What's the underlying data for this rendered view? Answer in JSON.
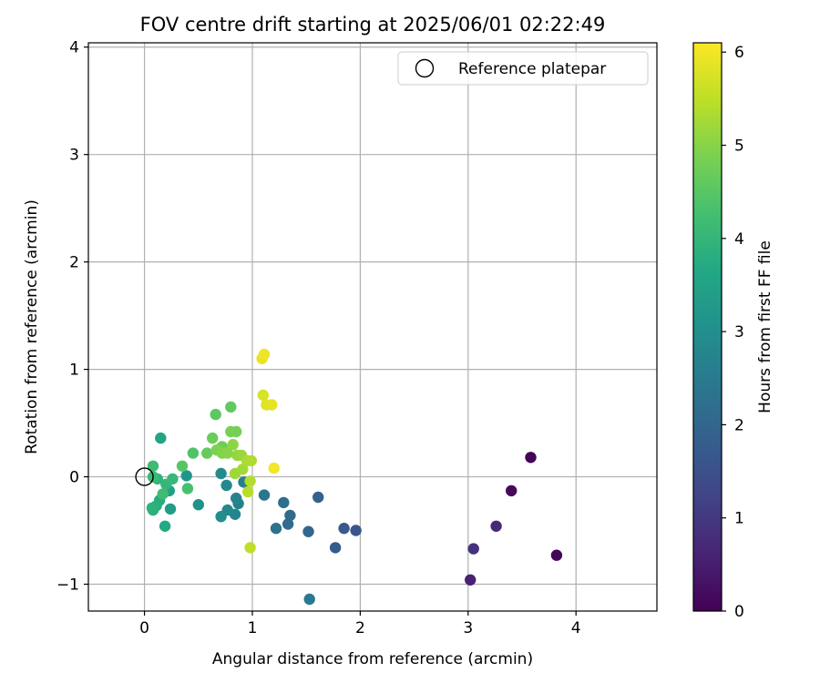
{
  "chart_data": {
    "type": "scatter",
    "title": "FOV centre drift starting at 2025/06/01 02:22:49",
    "xlabel": "Angular distance from reference (arcmin)",
    "ylabel": "Rotation from reference (arcmin)",
    "xlim": [
      -0.52,
      4.75
    ],
    "ylim": [
      -1.25,
      4.04
    ],
    "x_ticks": [
      0,
      1,
      2,
      3,
      4
    ],
    "y_ticks": [
      -1,
      0,
      1,
      2,
      3,
      4
    ],
    "grid": true,
    "legend": {
      "placement": "top-right",
      "entries": [
        "Reference platepar"
      ]
    },
    "reference_point": {
      "x": 0,
      "y": 0,
      "label": "Reference platepar"
    },
    "colorbar": {
      "label": "Hours from first FF file",
      "range": [
        0,
        6.1
      ],
      "ticks": [
        0,
        1,
        2,
        3,
        4,
        5,
        6
      ],
      "colormap": "viridis"
    },
    "points": [
      {
        "x": 3.58,
        "y": 0.18,
        "c": 0.05
      },
      {
        "x": 3.82,
        "y": -0.73,
        "c": 0.1
      },
      {
        "x": 3.4,
        "y": -0.13,
        "c": 0.15
      },
      {
        "x": 3.02,
        "y": -0.96,
        "c": 0.55
      },
      {
        "x": 3.26,
        "y": -0.46,
        "c": 0.7
      },
      {
        "x": 3.05,
        "y": -0.67,
        "c": 0.85
      },
      {
        "x": 1.96,
        "y": -0.5,
        "c": 1.6
      },
      {
        "x": 1.85,
        "y": -0.48,
        "c": 1.7
      },
      {
        "x": 1.77,
        "y": -0.66,
        "c": 1.75
      },
      {
        "x": 1.61,
        "y": -0.19,
        "c": 1.9
      },
      {
        "x": 1.52,
        "y": -0.51,
        "c": 2.0
      },
      {
        "x": 1.35,
        "y": -0.36,
        "c": 2.1
      },
      {
        "x": 1.33,
        "y": -0.44,
        "c": 2.15
      },
      {
        "x": 1.29,
        "y": -0.24,
        "c": 2.2
      },
      {
        "x": 1.22,
        "y": -0.48,
        "c": 2.3
      },
      {
        "x": 1.11,
        "y": -0.17,
        "c": 2.4
      },
      {
        "x": 1.53,
        "y": -1.14,
        "c": 2.5
      },
      {
        "x": 0.92,
        "y": -0.05,
        "c": 2.6
      },
      {
        "x": 0.87,
        "y": -0.25,
        "c": 2.65
      },
      {
        "x": 0.85,
        "y": -0.2,
        "c": 2.7
      },
      {
        "x": 0.84,
        "y": -0.35,
        "c": 2.75
      },
      {
        "x": 0.77,
        "y": -0.31,
        "c": 2.8
      },
      {
        "x": 0.76,
        "y": -0.08,
        "c": 2.85
      },
      {
        "x": 0.71,
        "y": 0.03,
        "c": 2.9
      },
      {
        "x": 0.71,
        "y": -0.37,
        "c": 2.95
      },
      {
        "x": 0.5,
        "y": -0.26,
        "c": 3.05
      },
      {
        "x": 0.39,
        "y": 0.01,
        "c": 3.2
      },
      {
        "x": 0.24,
        "y": -0.3,
        "c": 3.35
      },
      {
        "x": 0.23,
        "y": -0.13,
        "c": 3.45
      },
      {
        "x": 0.15,
        "y": 0.36,
        "c": 3.55
      },
      {
        "x": 0.19,
        "y": -0.46,
        "c": 3.7
      },
      {
        "x": 0.14,
        "y": -0.22,
        "c": 3.75
      },
      {
        "x": 0.11,
        "y": -0.27,
        "c": 3.8
      },
      {
        "x": 0.08,
        "y": -0.31,
        "c": 3.85
      },
      {
        "x": 0.07,
        "y": -0.29,
        "c": 3.9
      },
      {
        "x": 0.12,
        "y": -0.02,
        "c": 3.95
      },
      {
        "x": 0.2,
        "y": -0.07,
        "c": 4.0
      },
      {
        "x": 0.26,
        "y": -0.02,
        "c": 4.05
      },
      {
        "x": 0.08,
        "y": 0.0,
        "c": 4.1
      },
      {
        "x": 0.08,
        "y": 0.1,
        "c": 4.15
      },
      {
        "x": 0.17,
        "y": -0.16,
        "c": 4.2
      },
      {
        "x": 0.4,
        "y": -0.11,
        "c": 4.3
      },
      {
        "x": 0.45,
        "y": 0.22,
        "c": 4.4
      },
      {
        "x": 0.35,
        "y": 0.1,
        "c": 4.5
      },
      {
        "x": 0.66,
        "y": 0.58,
        "c": 4.55
      },
      {
        "x": 0.8,
        "y": 0.65,
        "c": 4.6
      },
      {
        "x": 0.58,
        "y": 0.22,
        "c": 4.65
      },
      {
        "x": 0.63,
        "y": 0.36,
        "c": 4.7
      },
      {
        "x": 0.72,
        "y": 0.28,
        "c": 4.75
      },
      {
        "x": 0.85,
        "y": 0.42,
        "c": 4.8
      },
      {
        "x": 0.8,
        "y": 0.42,
        "c": 4.85
      },
      {
        "x": 0.67,
        "y": 0.25,
        "c": 4.9
      },
      {
        "x": 0.72,
        "y": 0.22,
        "c": 4.95
      },
      {
        "x": 0.77,
        "y": 0.22,
        "c": 5.0
      },
      {
        "x": 0.82,
        "y": 0.3,
        "c": 5.05
      },
      {
        "x": 0.86,
        "y": 0.2,
        "c": 5.1
      },
      {
        "x": 0.9,
        "y": 0.2,
        "c": 5.15
      },
      {
        "x": 0.84,
        "y": 0.03,
        "c": 5.2
      },
      {
        "x": 0.91,
        "y": 0.07,
        "c": 5.25
      },
      {
        "x": 0.95,
        "y": 0.15,
        "c": 5.3
      },
      {
        "x": 0.99,
        "y": 0.15,
        "c": 5.35
      },
      {
        "x": 0.98,
        "y": -0.04,
        "c": 5.4
      },
      {
        "x": 0.96,
        "y": -0.14,
        "c": 5.45
      },
      {
        "x": 0.98,
        "y": -0.66,
        "c": 5.5
      },
      {
        "x": 1.1,
        "y": 0.76,
        "c": 5.75
      },
      {
        "x": 1.13,
        "y": 0.67,
        "c": 5.8
      },
      {
        "x": 1.18,
        "y": 0.67,
        "c": 5.85
      },
      {
        "x": 1.09,
        "y": 1.1,
        "c": 5.9
      },
      {
        "x": 1.11,
        "y": 1.14,
        "c": 5.95
      },
      {
        "x": 1.2,
        "y": 0.08,
        "c": 6.0
      }
    ]
  }
}
